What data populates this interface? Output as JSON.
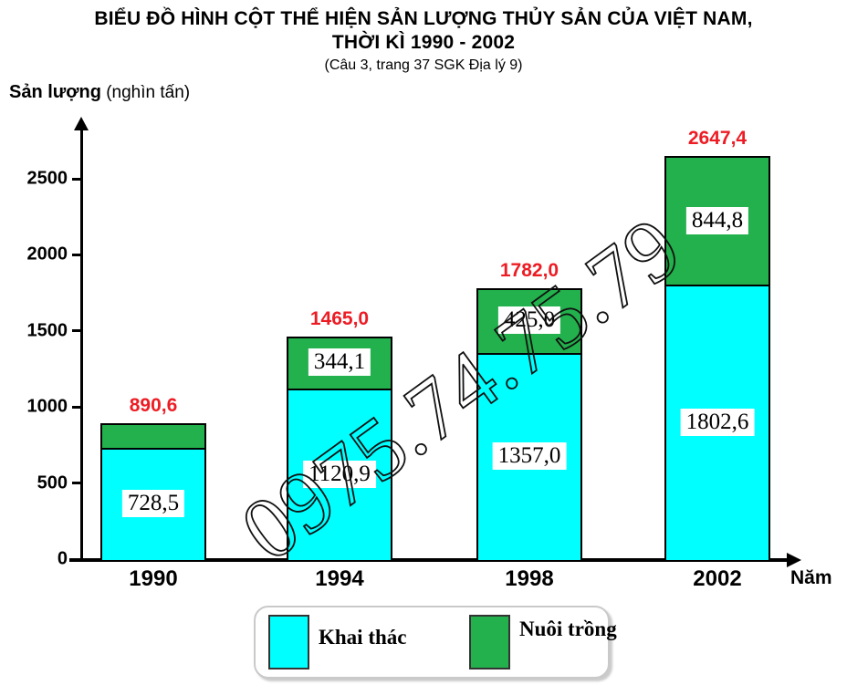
{
  "title": {
    "line1": "BIỂU ĐỒ HÌNH CỘT THỂ HIỆN SẢN LƯỢNG THỦY SẢN CỦA VIỆT NAM,",
    "line2": "THỜI KÌ 1990 - 2002",
    "subtitle": "(Câu 3, trang 37 SGK Địa lý 9)"
  },
  "y_axis": {
    "label_bold": "Sản lượng",
    "label_unit": "(nghìn tấn)",
    "ticks": [
      0,
      500,
      1000,
      1500,
      2000,
      2500
    ]
  },
  "x_axis": {
    "title": "Năm",
    "categories": [
      "1990",
      "1994",
      "1998",
      "2002"
    ]
  },
  "chart_data": {
    "type": "bar",
    "stacked": true,
    "title": "BIỂU ĐỒ HÌNH CỘT THỂ HIỆN SẢN LƯỢNG THỦY SẢN CỦA VIỆT NAM, THỜI KÌ 1990 - 2002",
    "subtitle": "(Câu 3, trang 37 SGK Địa lý 9)",
    "xlabel": "Năm",
    "ylabel": "Sản lượng (nghìn tấn)",
    "ylim": [
      0,
      2800
    ],
    "grid": false,
    "legend_position": "bottom",
    "categories": [
      "1990",
      "1994",
      "1998",
      "2002"
    ],
    "series": [
      {
        "name": "Khai thác",
        "color": "#00ffff",
        "values": [
          728.5,
          1120.9,
          1357.0,
          1802.6
        ],
        "labels": [
          "728,5",
          "1120,9",
          "1357,0",
          "1802,6"
        ]
      },
      {
        "name": "Nuôi trồng",
        "color": "#22b14c",
        "values": [
          null,
          344.1,
          425.0,
          844.8
        ],
        "labels": [
          null,
          "344,1",
          "425,0",
          "844,8"
        ]
      }
    ],
    "totals": {
      "values": [
        890.6,
        1465.0,
        1782.0,
        2647.4
      ],
      "labels": [
        "890,6",
        "1465,0",
        "1782,0",
        "2647,4"
      ],
      "color": "#ed1c24"
    }
  },
  "legend": {
    "items": [
      {
        "label": "Khai thác",
        "color": "#00ffff"
      },
      {
        "label": "Nuôi trồng",
        "color": "#22b14c"
      }
    ]
  },
  "watermark": {
    "text": "0975.74.75.79"
  }
}
